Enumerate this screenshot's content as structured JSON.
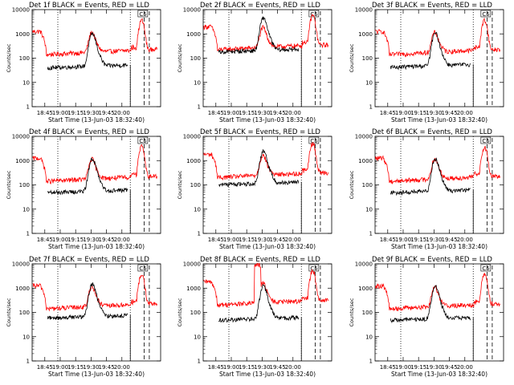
{
  "figure": {
    "colors": {
      "events": "#000000",
      "lld": "#ff0000",
      "axes": "#000000",
      "background": "#ffffff"
    }
  },
  "chart_data": [
    {
      "type": "line",
      "title": "Det 1f BLACK = Events, RED = LLD",
      "xlabel": "Start Time (13-Jun-03 18:32:40)",
      "ylabel": "Counts/sec",
      "yscale": "log",
      "ylim": [
        1,
        10000
      ],
      "yticks": [
        "1",
        "10",
        "100",
        "1000",
        "10000"
      ],
      "xticks": [
        "18:45",
        "19:00",
        "19:15",
        "19:30",
        "19:45",
        "20:00"
      ],
      "xlim_minutes": [
        0,
        103
      ],
      "grid": false,
      "legend": "none",
      "annotation": "C5",
      "dotted_lines_min": [
        25,
        95.5
      ],
      "dashed_lines_min": [
        99,
        104
      ],
      "series": [
        {
          "name": "Events",
          "color": "black",
          "profile": "det_events_typical",
          "base_level": 38
        },
        {
          "name": "LLD",
          "color": "red",
          "profile": "det_lld_typical",
          "base_level": 140
        }
      ]
    },
    {
      "type": "line",
      "title": "Det 2f BLACK = Events, RED = LLD",
      "xlabel": "Start Time (13-Jun-03 18:32:40)",
      "ylabel": "Counts/sec",
      "yscale": "log",
      "ylim": [
        1,
        10000
      ],
      "yticks": [
        "1",
        "10",
        "100",
        "1000",
        "10000"
      ],
      "xticks": [
        "18:45",
        "19:00",
        "19:15",
        "19:30",
        "19:45",
        "20:00"
      ],
      "xlim_minutes": [
        0,
        103
      ],
      "grid": false,
      "legend": "none",
      "annotation": "C5",
      "dotted_lines_min": [
        25,
        95.5
      ],
      "dashed_lines_min": [
        99,
        104
      ],
      "series": [
        {
          "name": "Events",
          "color": "black",
          "profile": "det_events_high",
          "base_level": 170
        },
        {
          "name": "LLD",
          "color": "red",
          "profile": "det_lld_high",
          "base_level": 220
        }
      ]
    },
    {
      "type": "line",
      "title": "Det 3f BLACK = Events, RED = LLD",
      "xlabel": "Start Time (13-Jun-03 18:32:40)",
      "ylabel": "Counts/sec",
      "yscale": "log",
      "ylim": [
        1,
        10000
      ],
      "yticks": [
        "1",
        "10",
        "100",
        "1000",
        "10000"
      ],
      "xticks": [
        "18:45",
        "19:00",
        "19:15",
        "19:30",
        "19:45",
        "20:00"
      ],
      "xlim_minutes": [
        0,
        103
      ],
      "grid": false,
      "legend": "none",
      "annotation": "C5",
      "dotted_lines_min": [
        25,
        95.5
      ],
      "dashed_lines_min": [
        99,
        104
      ],
      "series": [
        {
          "name": "Events",
          "color": "black",
          "profile": "det_events_typical",
          "base_level": 40
        },
        {
          "name": "LLD",
          "color": "red",
          "profile": "det_lld_typical",
          "base_level": 140
        }
      ]
    },
    {
      "type": "line",
      "title": "Det 4f BLACK = Events, RED = LLD",
      "xlabel": "Start Time (13-Jun-03 18:32:40)",
      "ylabel": "Counts/sec",
      "yscale": "log",
      "ylim": [
        1,
        10000
      ],
      "yticks": [
        "1",
        "10",
        "100",
        "1000",
        "10000"
      ],
      "xticks": [
        "18:45",
        "19:00",
        "19:15",
        "19:30",
        "19:45",
        "20:00"
      ],
      "xlim_minutes": [
        0,
        103
      ],
      "grid": false,
      "legend": "none",
      "annotation": "C5",
      "dotted_lines_min": [
        25,
        95.5
      ],
      "dashed_lines_min": [
        99,
        104
      ],
      "series": [
        {
          "name": "Events",
          "color": "black",
          "profile": "det_events_typical",
          "base_level": 45
        },
        {
          "name": "LLD",
          "color": "red",
          "profile": "det_lld_typical",
          "base_level": 140
        }
      ]
    },
    {
      "type": "line",
      "title": "Det 5f BLACK = Events, RED = LLD",
      "xlabel": "Start Time (13-Jun-03 18:32:40)",
      "ylabel": "Counts/sec",
      "yscale": "log",
      "ylim": [
        1,
        10000
      ],
      "yticks": [
        "1",
        "10",
        "100",
        "1000",
        "10000"
      ],
      "xticks": [
        "18:45",
        "19:00",
        "19:15",
        "19:30",
        "19:45",
        "20:00"
      ],
      "xlim_minutes": [
        0,
        103
      ],
      "grid": false,
      "legend": "none",
      "annotation": "C5",
      "dotted_lines_min": [
        25,
        95.5
      ],
      "dashed_lines_min": [
        99,
        104
      ],
      "series": [
        {
          "name": "Events",
          "color": "black",
          "profile": "det_events_typical",
          "base_level": 95
        },
        {
          "name": "LLD",
          "color": "red",
          "profile": "det_lld_typical",
          "base_level": 200
        }
      ]
    },
    {
      "type": "line",
      "title": "Det 6f BLACK = Events, RED = LLD",
      "xlabel": "Start Time (13-Jun-03 18:32:40)",
      "ylabel": "Counts/sec",
      "yscale": "log",
      "ylim": [
        1,
        10000
      ],
      "yticks": [
        "1",
        "10",
        "100",
        "1000",
        "10000"
      ],
      "xticks": [
        "18:45",
        "19:00",
        "19:15",
        "19:30",
        "19:45",
        "20:00"
      ],
      "xlim_minutes": [
        0,
        103
      ],
      "grid": false,
      "legend": "none",
      "annotation": "C5",
      "dotted_lines_min": [
        25,
        95.5
      ],
      "dashed_lines_min": [
        99,
        104
      ],
      "series": [
        {
          "name": "Events",
          "color": "black",
          "profile": "det_events_typical",
          "base_level": 45
        },
        {
          "name": "LLD",
          "color": "red",
          "profile": "det_lld_typical",
          "base_level": 140
        }
      ]
    },
    {
      "type": "line",
      "title": "Det 7f BLACK = Events, RED = LLD",
      "xlabel": "Start Time (13-Jun-03 18:32:40)",
      "ylabel": "Counts/sec",
      "yscale": "log",
      "ylim": [
        1,
        10000
      ],
      "yticks": [
        "1",
        "10",
        "100",
        "1000",
        "10000"
      ],
      "xticks": [
        "18:45",
        "19:00",
        "19:15",
        "19:30",
        "19:45",
        "20:00"
      ],
      "xlim_minutes": [
        0,
        103
      ],
      "grid": false,
      "legend": "none",
      "annotation": "C5",
      "dotted_lines_min": [
        25,
        95.5
      ],
      "dashed_lines_min": [
        99,
        104
      ],
      "series": [
        {
          "name": "Events",
          "color": "black",
          "profile": "det_events_typical",
          "base_level": 55
        },
        {
          "name": "LLD",
          "color": "red",
          "profile": "det_lld_typical",
          "base_level": 140
        }
      ]
    },
    {
      "type": "line",
      "title": "Det 8f BLACK = Events, RED = LLD",
      "xlabel": "Start Time (13-Jun-03 18:32:40)",
      "ylabel": "Counts/sec",
      "yscale": "log",
      "ylim": [
        1,
        10000
      ],
      "yticks": [
        "1",
        "10",
        "100",
        "1000",
        "10000"
      ],
      "xticks": [
        "18:45",
        "19:00",
        "19:15",
        "19:30",
        "19:45",
        "20:00"
      ],
      "xlim_minutes": [
        0,
        103
      ],
      "grid": false,
      "legend": "none",
      "annotation": "C5",
      "dotted_lines_min": [
        25,
        95.5
      ],
      "dashed_lines_min": [
        99,
        104
      ],
      "series": [
        {
          "name": "Events",
          "color": "black",
          "profile": "det_events_typical",
          "base_level": 45
        },
        {
          "name": "LLD",
          "color": "red",
          "profile": "det_lld_spiky",
          "base_level": 200
        }
      ]
    },
    {
      "type": "line",
      "title": "Det 9f BLACK = Events, RED = LLD",
      "xlabel": "Start Time (13-Jun-03 18:32:40)",
      "ylabel": "Counts/sec",
      "yscale": "log",
      "ylim": [
        1,
        10000
      ],
      "yticks": [
        "1",
        "10",
        "100",
        "1000",
        "10000"
      ],
      "xticks": [
        "18:45",
        "19:00",
        "19:15",
        "19:30",
        "19:45",
        "20:00"
      ],
      "xlim_minutes": [
        0,
        103
      ],
      "grid": false,
      "legend": "none",
      "annotation": "C5",
      "dotted_lines_min": [
        25,
        95.5
      ],
      "dashed_lines_min": [
        99,
        104
      ],
      "series": [
        {
          "name": "Events",
          "color": "black",
          "profile": "det_events_typical",
          "base_level": 45
        },
        {
          "name": "LLD",
          "color": "red",
          "profile": "det_lld_typical",
          "base_level": 140
        }
      ]
    }
  ]
}
